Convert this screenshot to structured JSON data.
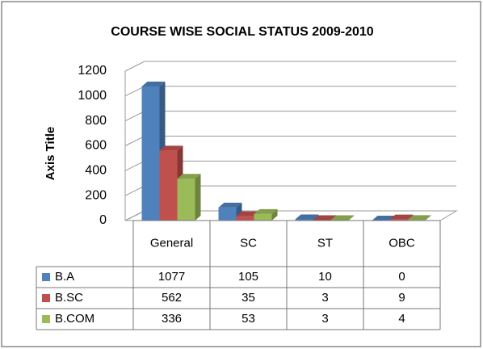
{
  "chart_data": {
    "type": "bar3d",
    "title": "COURSE WISE SOCIAL STATUS 2009-2010",
    "y_axis_label": "Axis Title",
    "categories": [
      "General",
      "SC",
      "ST",
      "OBC"
    ],
    "series": [
      {
        "name": "B.A",
        "color": "#4f81bd",
        "values": [
          1077,
          105,
          10,
          0
        ]
      },
      {
        "name": "B.SC",
        "color": "#c0504d",
        "values": [
          562,
          35,
          3,
          9
        ]
      },
      {
        "name": "B.COM",
        "color": "#9bbb59",
        "values": [
          336,
          53,
          3,
          4
        ]
      }
    ],
    "ylim": [
      0,
      1200
    ],
    "yticks": [
      0,
      200,
      400,
      600,
      800,
      1000,
      1200
    ],
    "grid": true
  }
}
